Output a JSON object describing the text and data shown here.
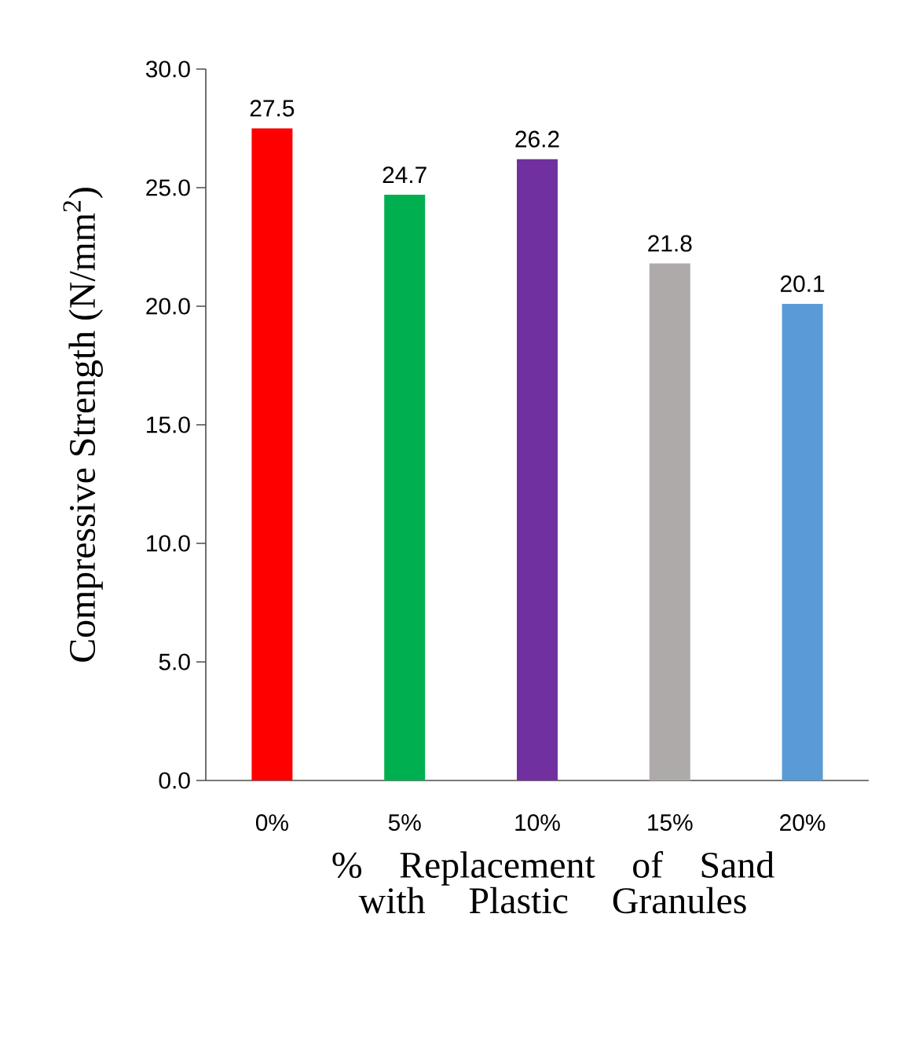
{
  "chart_data": {
    "type": "bar",
    "xlabel": "% Replacement of Sand with Plastic Granules",
    "ylabel": "Compressive Strength (N/mm$^{2}$)",
    "categories": [
      "0%",
      "5%",
      "10%",
      "15%",
      "20%"
    ],
    "values": [
      27.5,
      24.7,
      26.2,
      21.8,
      20.1
    ],
    "colors": [
      "#ff0000",
      "#00b050",
      "#7030a0",
      "#aeaaaa",
      "#5b9bd5"
    ],
    "ylim": [
      0,
      30
    ],
    "yticks": [
      {
        "value": 0,
        "label": "0.0"
      },
      {
        "value": 5,
        "label": "5.0"
      },
      {
        "value": 10,
        "label": "10.0"
      },
      {
        "value": 15,
        "label": "15.0"
      },
      {
        "value": 20,
        "label": "20.0"
      },
      {
        "value": 25,
        "label": "25.0"
      },
      {
        "value": 30,
        "label": "30.0"
      }
    ],
    "data_labels": true,
    "grid": false
  }
}
